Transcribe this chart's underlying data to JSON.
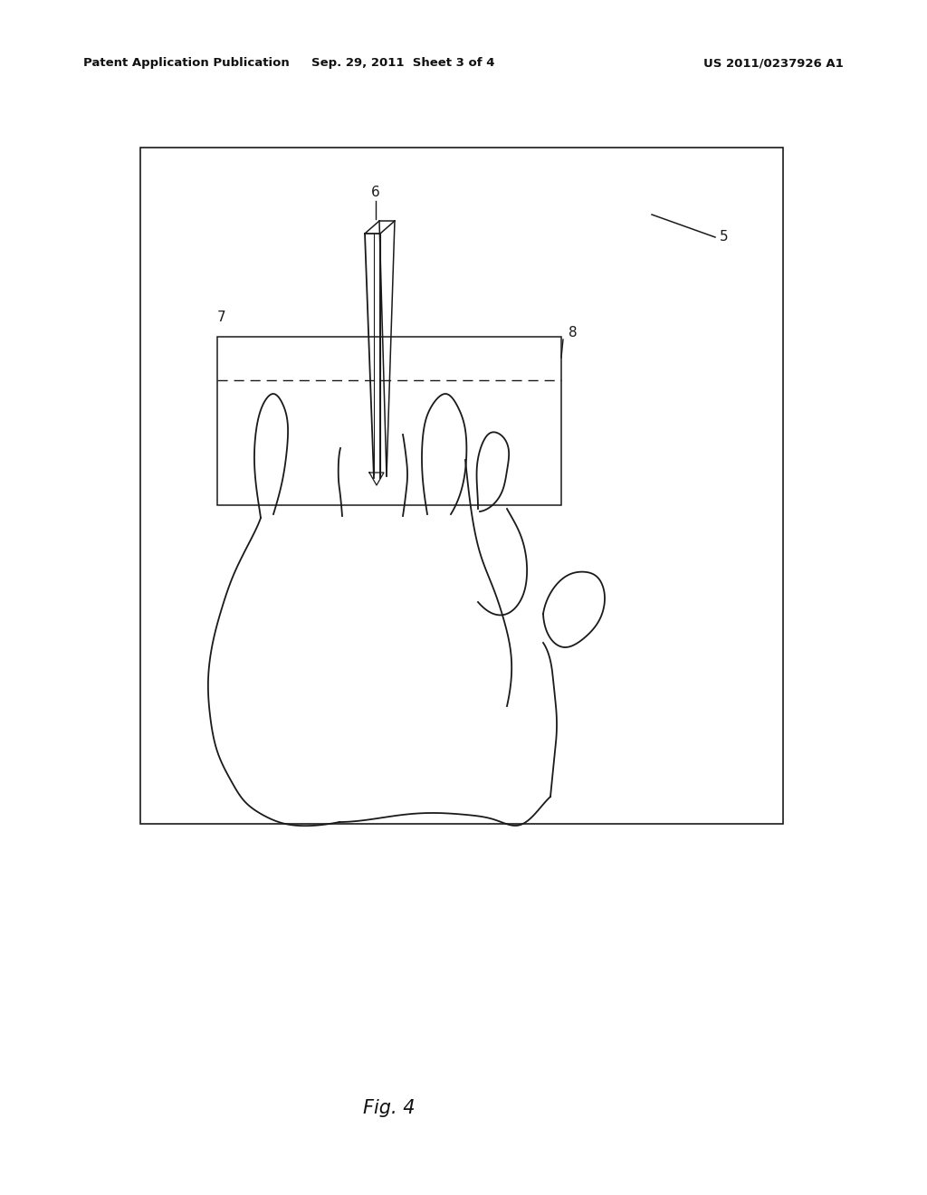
{
  "background_color": "#ffffff",
  "header_left": "Patent Application Publication",
  "header_center": "Sep. 29, 2011  Sheet 3 of 4",
  "header_right": "US 2011/0237926 A1",
  "fig_label": "Fig. 4",
  "label_5": "5",
  "label_6": "6",
  "label_7": "7",
  "label_8": "8",
  "line_color": "#1a1a1a"
}
